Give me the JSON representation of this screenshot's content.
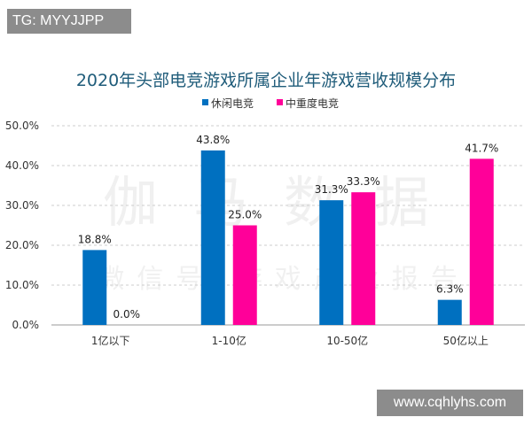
{
  "overlays": {
    "top_left_tag": "TG: MYYJJPP",
    "bottom_right_tag": "www.cqhlyhs.com"
  },
  "watermark": {
    "line1": "伽马数据",
    "line2": "微信号 游戏产业报告"
  },
  "chart_data": {
    "type": "bar",
    "title": "2020年头部电竞游戏所属企业年游戏营收规模分布",
    "categories": [
      "1亿以下",
      "1-10亿",
      "10-50亿",
      "50亿以上"
    ],
    "series": [
      {
        "name": "休闲电竞",
        "values": [
          18.8,
          43.8,
          31.3,
          6.3
        ],
        "labels": [
          "18.8%",
          "43.8%",
          "31.3%",
          "6.3%"
        ],
        "color": "#0070c0"
      },
      {
        "name": "中重度电竞",
        "values": [
          0.0,
          25.0,
          33.3,
          41.7
        ],
        "labels": [
          "0.0%",
          "25.0%",
          "33.3%",
          "41.7%"
        ],
        "color": "#ff0099"
      }
    ],
    "ylim": [
      0,
      50
    ],
    "yticks": [
      "0.0%",
      "10.0%",
      "20.0%",
      "30.0%",
      "40.0%",
      "50.0%"
    ],
    "grid": true,
    "legend": "top-center",
    "title_color": "#1f5c7a"
  }
}
